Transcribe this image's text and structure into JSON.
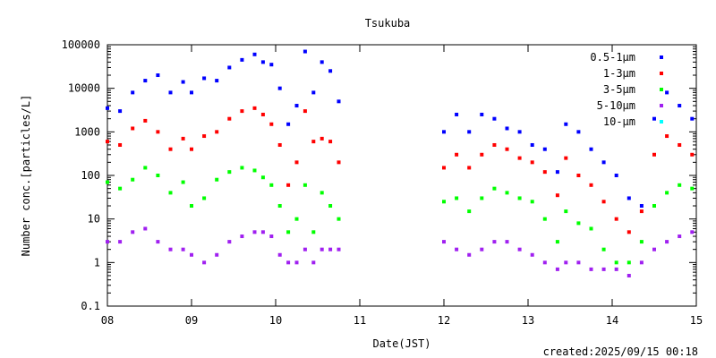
{
  "chart_data": {
    "type": "scatter",
    "title": "Tsukuba",
    "xlabel": "Date(JST)",
    "ylabel": "Number conc.[particles/L]",
    "footer": "created:2025/09/15 00:18",
    "y_scale": "log",
    "ylim": [
      0.1,
      100000
    ],
    "y_ticks": [
      0.1,
      1,
      10,
      100,
      1000,
      10000,
      100000
    ],
    "y_tick_labels": [
      "0.1",
      "1",
      "10",
      "100",
      "1000",
      "10000",
      "100000"
    ],
    "xlim": [
      8,
      15
    ],
    "x_ticks": [
      8,
      9,
      10,
      11,
      12,
      13,
      14,
      15
    ],
    "x_tick_labels": [
      "08",
      "09",
      "10",
      "11",
      "12",
      "13",
      "14",
      "15"
    ],
    "grid": false,
    "legend_position": "top-right",
    "series": [
      {
        "name": "0.5-1μm",
        "color": "#0000ff",
        "x": [
          8.0,
          8.15,
          8.3,
          8.45,
          8.6,
          8.75,
          8.9,
          9.0,
          9.15,
          9.3,
          9.45,
          9.6,
          9.75,
          9.85,
          9.95,
          10.05,
          10.15,
          10.25,
          10.35,
          10.45,
          10.55,
          10.65,
          10.75,
          12.0,
          12.15,
          12.3,
          12.45,
          12.6,
          12.75,
          12.9,
          13.05,
          13.2,
          13.35,
          13.45,
          13.6,
          13.75,
          13.9,
          14.05,
          14.2,
          14.35,
          14.5,
          14.65,
          14.8,
          14.95
        ],
        "y": [
          3500,
          3000,
          8000,
          15000,
          20000,
          8000,
          14000,
          8000,
          17000,
          15000,
          30000,
          45000,
          60000,
          40000,
          35000,
          10000,
          1500,
          4000,
          70000,
          8000,
          40000,
          25000,
          5000,
          1000,
          2500,
          1000,
          2500,
          2000,
          1200,
          1000,
          500,
          400,
          120,
          1500,
          1000,
          400,
          200,
          100,
          30,
          20,
          2000,
          8000,
          4000,
          2000
        ]
      },
      {
        "name": "1-3μm",
        "color": "#ff0000",
        "x": [
          8.0,
          8.15,
          8.3,
          8.45,
          8.6,
          8.75,
          8.9,
          9.0,
          9.15,
          9.3,
          9.45,
          9.6,
          9.75,
          9.85,
          9.95,
          10.05,
          10.15,
          10.25,
          10.35,
          10.45,
          10.55,
          10.65,
          10.75,
          12.0,
          12.15,
          12.3,
          12.45,
          12.6,
          12.75,
          12.9,
          13.05,
          13.2,
          13.35,
          13.45,
          13.6,
          13.75,
          13.9,
          14.05,
          14.2,
          14.35,
          14.5,
          14.65,
          14.8,
          14.95
        ],
        "y": [
          600,
          500,
          1200,
          1800,
          1000,
          400,
          700,
          400,
          800,
          1000,
          2000,
          3000,
          3500,
          2500,
          1500,
          500,
          60,
          200,
          3000,
          600,
          700,
          600,
          200,
          150,
          300,
          150,
          300,
          500,
          400,
          250,
          200,
          120,
          35,
          250,
          100,
          60,
          25,
          10,
          5,
          15,
          300,
          800,
          500,
          300
        ]
      },
      {
        "name": "3-5μm",
        "color": "#00ff00",
        "x": [
          8.0,
          8.15,
          8.3,
          8.45,
          8.6,
          8.75,
          8.9,
          9.0,
          9.15,
          9.3,
          9.45,
          9.6,
          9.75,
          9.85,
          9.95,
          10.05,
          10.15,
          10.25,
          10.35,
          10.45,
          10.55,
          10.65,
          10.75,
          12.0,
          12.15,
          12.3,
          12.45,
          12.6,
          12.75,
          12.9,
          13.05,
          13.2,
          13.35,
          13.45,
          13.6,
          13.75,
          13.9,
          14.05,
          14.2,
          14.35,
          14.5,
          14.65,
          14.8,
          14.95
        ],
        "y": [
          70,
          50,
          80,
          150,
          100,
          40,
          70,
          20,
          30,
          80,
          120,
          150,
          130,
          90,
          60,
          20,
          5,
          10,
          60,
          5,
          40,
          20,
          10,
          25,
          30,
          15,
          30,
          50,
          40,
          30,
          25,
          10,
          3,
          15,
          8,
          6,
          2,
          1,
          1,
          3,
          20,
          40,
          60,
          50
        ]
      },
      {
        "name": "5-10μm",
        "color": "#a020f0",
        "x": [
          8.0,
          8.15,
          8.3,
          8.45,
          8.6,
          8.75,
          8.9,
          9.0,
          9.15,
          9.3,
          9.45,
          9.6,
          9.75,
          9.85,
          9.95,
          10.05,
          10.15,
          10.25,
          10.35,
          10.45,
          10.55,
          10.65,
          10.75,
          12.0,
          12.15,
          12.3,
          12.45,
          12.6,
          12.75,
          12.9,
          13.05,
          13.2,
          13.35,
          13.45,
          13.6,
          13.75,
          13.9,
          14.05,
          14.2,
          14.35,
          14.5,
          14.65,
          14.8,
          14.95
        ],
        "y": [
          3,
          3,
          5,
          6,
          3,
          2,
          2,
          1.5,
          1,
          1.5,
          3,
          4,
          5,
          5,
          4,
          1.5,
          1,
          1,
          2,
          1,
          2,
          2,
          2,
          3,
          2,
          1.5,
          2,
          3,
          3,
          2,
          1.5,
          1,
          0.7,
          1,
          1,
          0.7,
          0.7,
          0.7,
          0.5,
          1,
          2,
          3,
          4,
          5
        ]
      },
      {
        "name": "10-μm",
        "color": "#00ffff",
        "x": [],
        "y": []
      }
    ]
  }
}
